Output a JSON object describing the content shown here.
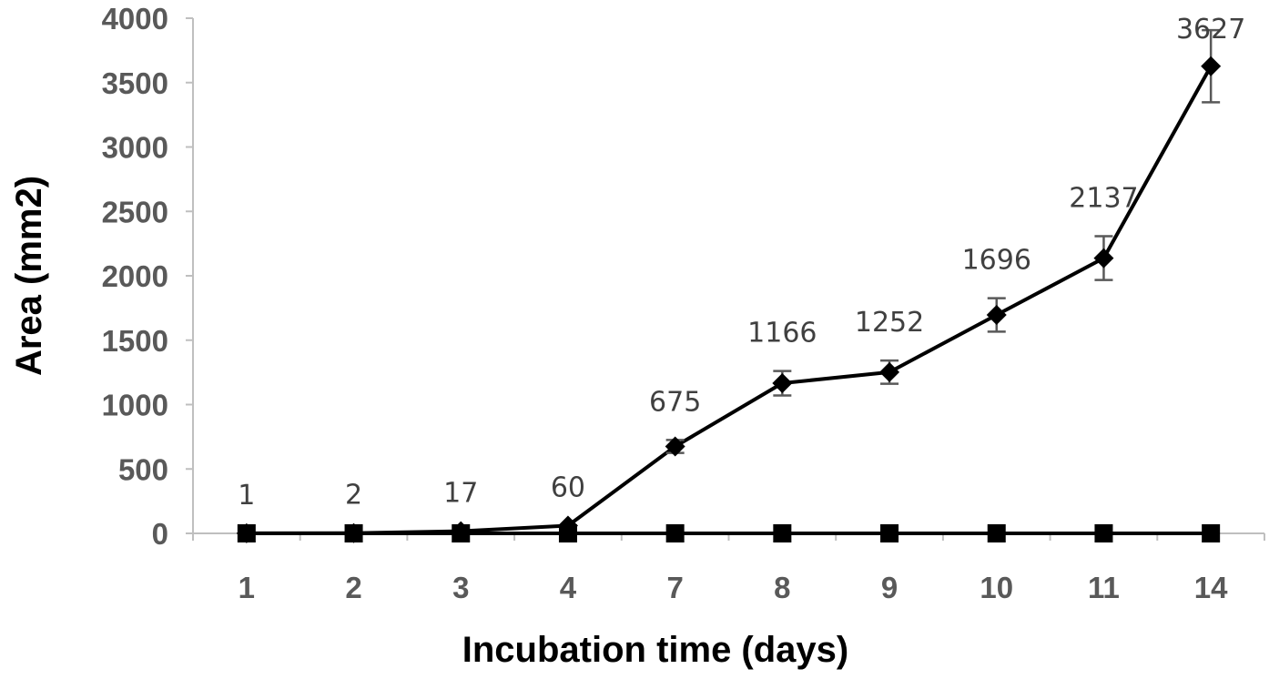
{
  "chart_data": {
    "type": "line",
    "xlabel": "Incubation time (days)",
    "ylabel": "Area (mm2)",
    "ylim": [
      0,
      4000
    ],
    "y_ticks": [
      0,
      500,
      1000,
      1500,
      2000,
      2500,
      3000,
      3500,
      4000
    ],
    "categories": [
      "1",
      "2",
      "3",
      "4",
      "7",
      "8",
      "9",
      "10",
      "11",
      "14"
    ],
    "grid": false,
    "series": [
      {
        "marker": "diamond",
        "color": "#000000",
        "values": [
          1,
          2,
          17,
          60,
          675,
          1166,
          1252,
          1696,
          2137,
          3627
        ],
        "error": [
          0,
          0,
          0,
          0,
          50,
          95,
          90,
          130,
          170,
          280
        ],
        "data_labels": [
          "1",
          "2",
          "17",
          "60",
          "675",
          "1166",
          "1252",
          "1696",
          "2137",
          "3627"
        ]
      },
      {
        "marker": "square",
        "color": "#000000",
        "values": [
          0,
          0,
          0,
          0,
          0,
          0,
          0,
          0,
          0,
          0
        ]
      }
    ]
  }
}
